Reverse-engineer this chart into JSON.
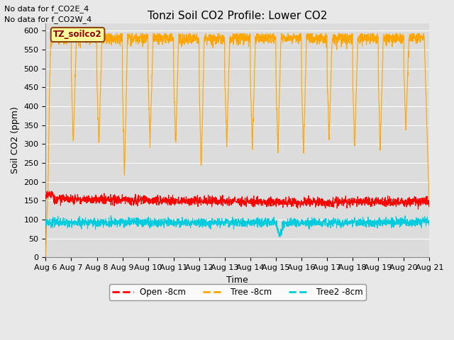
{
  "title": "Tonzi Soil CO2 Profile: Lower CO2",
  "xlabel": "Time",
  "ylabel": "Soil CO2 (ppm)",
  "ylim": [
    0,
    620
  ],
  "yticks": [
    0,
    50,
    100,
    150,
    200,
    250,
    300,
    350,
    400,
    450,
    500,
    550,
    600
  ],
  "fig_bg_color": "#e8e8e8",
  "plot_bg_color": "#dcdcdc",
  "text_above": [
    "No data for f_CO2E_4",
    "No data for f_CO2W_4"
  ],
  "legend_label": "TZ_soilco2",
  "legend_box_color": "#ffff99",
  "legend_box_edge": "#8b4513",
  "series": {
    "open": {
      "label": "Open -8cm",
      "color": "#ff0000",
      "linewidth": 0.8
    },
    "tree": {
      "label": "Tree -8cm",
      "color": "#ffa500",
      "linewidth": 0.8
    },
    "tree2": {
      "label": "Tree2 -8cm",
      "color": "#00ccdd",
      "linewidth": 0.8
    }
  },
  "xstart": 0,
  "xend": 15,
  "n_points": 2160,
  "xtick_labels": [
    "Aug 6",
    "Aug 7",
    "Aug 8",
    "Aug 9",
    "Aug 10",
    "Aug 11",
    "Aug 12",
    "Aug 13",
    "Aug 14",
    "Aug 15",
    "Aug 16",
    "Aug 17",
    "Aug 18",
    "Aug 19",
    "Aug 20",
    "Aug 21"
  ],
  "title_fontsize": 11,
  "axis_fontsize": 9,
  "tick_fontsize": 8
}
